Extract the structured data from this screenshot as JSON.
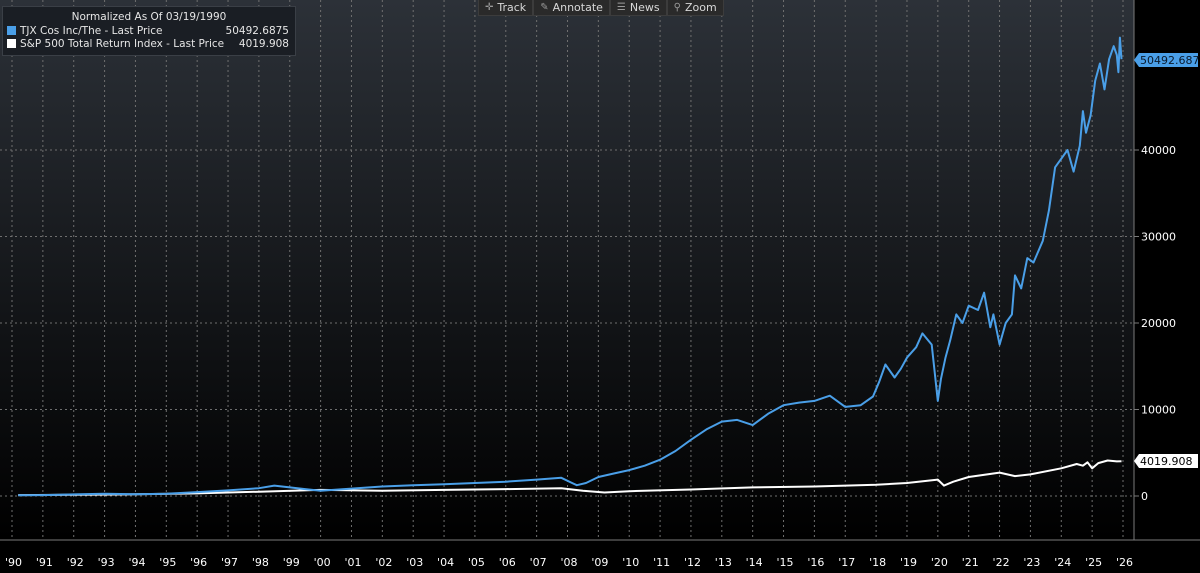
{
  "toolbar": {
    "track_label": "Track",
    "annotate_label": "Annotate",
    "news_label": "News",
    "zoom_label": "Zoom"
  },
  "legend": {
    "title": "Normalized As Of 03/19/1990",
    "series": [
      {
        "name": "TJX Cos Inc/The - Last Price",
        "value": "50492.6875",
        "color": "#4a9fe8"
      },
      {
        "name": "S&P 500 Total Return Index - Last Price",
        "value": "4019.908",
        "color": "#ffffff"
      }
    ]
  },
  "chart_data": {
    "type": "line",
    "title": "Normalized As Of 03/19/1990",
    "xlabel": "",
    "ylabel": "",
    "xlim": [
      1990,
      2026
    ],
    "ylim": [
      -4800,
      57000
    ],
    "y_ticks": [
      0,
      10000,
      20000,
      30000,
      40000
    ],
    "y_tick_labels": [
      "0",
      "10000",
      "20000",
      "30000",
      "40000"
    ],
    "x_ticks": [
      1990,
      1991,
      1992,
      1993,
      1994,
      1995,
      1996,
      1997,
      1998,
      1999,
      2000,
      2001,
      2002,
      2003,
      2004,
      2005,
      2006,
      2007,
      2008,
      2009,
      2010,
      2011,
      2012,
      2013,
      2014,
      2015,
      2016,
      2017,
      2018,
      2019,
      2020,
      2021,
      2022,
      2023,
      2024,
      2025,
      2026
    ],
    "x_tick_labels": [
      "'90",
      "'91",
      "'92",
      "'93",
      "'94",
      "'95",
      "'96",
      "'97",
      "'98",
      "'99",
      "'00",
      "'01",
      "'02",
      "'03",
      "'04",
      "'05",
      "'06",
      "'07",
      "'08",
      "'09",
      "'10",
      "'11",
      "'12",
      "'13",
      "'14",
      "'15",
      "'16",
      "'17",
      "'18",
      "'19",
      "'20",
      "'21",
      "'22",
      "'23",
      "'24",
      "'25",
      "'26"
    ],
    "grid": true,
    "legend_position": "top-left",
    "series": [
      {
        "name": "TJX Cos Inc/The - Last Price",
        "color": "#4a9fe8",
        "last_value": 50492.6875,
        "last_value_label": "50492.6875",
        "x": [
          1990.2,
          1991,
          1992,
          1993,
          1994,
          1995,
          1996,
          1997,
          1998,
          1998.5,
          1999,
          1999.5,
          2000,
          2001,
          2002,
          2003,
          2004,
          2005,
          2006,
          2007,
          2007.8,
          2008.15,
          2008.3,
          2008.6,
          2009,
          2009.5,
          2010,
          2010.5,
          2011,
          2011.5,
          2012,
          2012.5,
          2013,
          2013.5,
          2014,
          2014.5,
          2015,
          2015.5,
          2016,
          2016.5,
          2017,
          2017.5,
          2017.9,
          2018.1,
          2018.3,
          2018.6,
          2018.8,
          2019,
          2019.3,
          2019.5,
          2019.8,
          2020.0,
          2020.1,
          2020.25,
          2020.4,
          2020.6,
          2020.8,
          2021,
          2021.3,
          2021.5,
          2021.7,
          2021.8,
          2022.0,
          2022.2,
          2022.4,
          2022.5,
          2022.7,
          2022.9,
          2023.1,
          2023.4,
          2023.6,
          2023.8,
          2024.0,
          2024.2,
          2024.4,
          2024.6,
          2024.7,
          2024.8,
          2024.95,
          2025.1,
          2025.25,
          2025.4,
          2025.55,
          2025.7,
          2025.8,
          2025.85,
          2025.9,
          2025.95
        ],
        "y": [
          80,
          100,
          180,
          250,
          200,
          260,
          450,
          650,
          900,
          1200,
          1000,
          800,
          600,
          850,
          1100,
          1250,
          1350,
          1500,
          1650,
          1900,
          2100,
          1500,
          1250,
          1500,
          2200,
          2600,
          3000,
          3500,
          4200,
          5200,
          6500,
          7700,
          8600,
          8800,
          8200,
          9500,
          10500,
          10800,
          11000,
          11600,
          10300,
          10500,
          11500,
          13200,
          15200,
          13700,
          14700,
          16000,
          17200,
          18800,
          17500,
          11000,
          13500,
          16000,
          18000,
          21000,
          20000,
          22000,
          21500,
          23500,
          19500,
          21000,
          17500,
          20000,
          21000,
          25500,
          24000,
          27500,
          27000,
          29500,
          33000,
          38000,
          39000,
          40000,
          37500,
          40500,
          44500,
          42000,
          44000,
          48000,
          50000,
          47000,
          50500,
          52000,
          51000,
          49000,
          53000,
          50500
        ]
      },
      {
        "name": "S&P 500 Total Return Index - Last Price",
        "color": "#ffffff",
        "last_value": 4019.908,
        "last_value_label": "4019.908",
        "x": [
          1990.2,
          1992,
          1994,
          1996,
          1998,
          2000,
          2002,
          2004,
          2006,
          2007.8,
          2008.5,
          2009.2,
          2010,
          2012,
          2014,
          2016,
          2018,
          2019,
          2020.0,
          2020.2,
          2020.5,
          2021,
          2022.0,
          2022.5,
          2023,
          2024,
          2024.5,
          2024.7,
          2024.85,
          2025.0,
          2025.2,
          2025.5,
          2025.8,
          2025.95
        ],
        "y": [
          100,
          150,
          200,
          300,
          500,
          700,
          600,
          700,
          800,
          900,
          600,
          400,
          550,
          750,
          1000,
          1100,
          1300,
          1500,
          1900,
          1200,
          1650,
          2200,
          2700,
          2300,
          2500,
          3200,
          3700,
          3500,
          3900,
          3200,
          3800,
          4100,
          4000,
          4020
        ]
      }
    ]
  }
}
